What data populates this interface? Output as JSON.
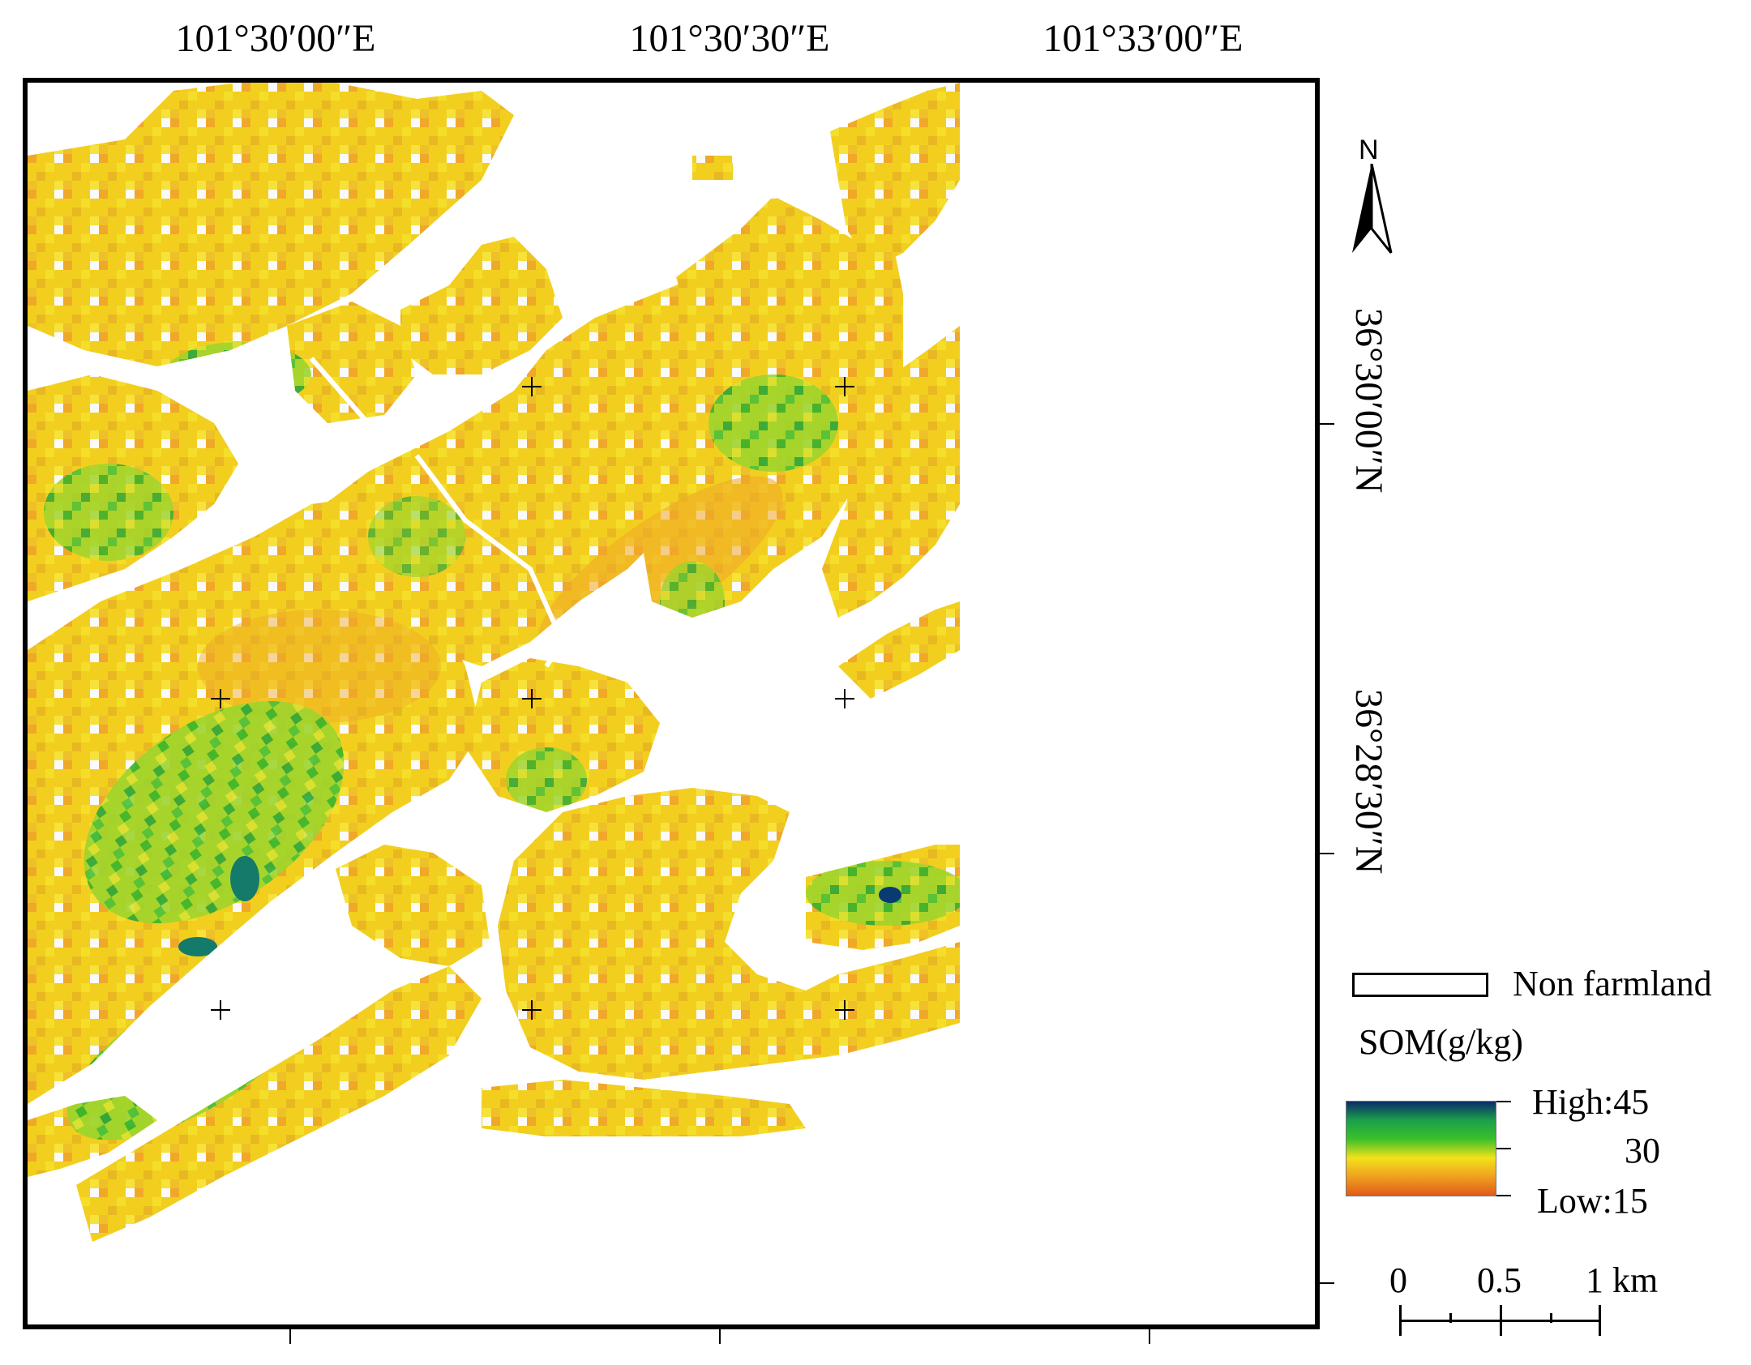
{
  "map": {
    "longitude_labels": [
      "101°30′00″E",
      "101°30′30″E",
      "101°33′00″E"
    ],
    "latitude_labels": [
      "36°30′00″N",
      "36°28′30″N"
    ],
    "palette": {
      "orange": "#f0a020",
      "yellow": "#f2d21c",
      "light_green": "#b4dc2c",
      "green": "#34b42c",
      "teal": "#147a6a",
      "dark_blue": "#0a3a72"
    }
  },
  "north_arrow": {
    "label": "N"
  },
  "legend": {
    "nonfarmland_label": "Non farmland",
    "som_title": "SOM(g/kg)",
    "high_label": "High:45",
    "mid_label": "30",
    "low_label": "Low:15",
    "ramp_colors": [
      "#0a2a6a",
      "#1aa04a",
      "#3cc02a",
      "#f2e21a",
      "#f0a020",
      "#e05a1a"
    ]
  },
  "scale_bar": {
    "labels": [
      "0",
      "0.5",
      "1 km"
    ]
  }
}
